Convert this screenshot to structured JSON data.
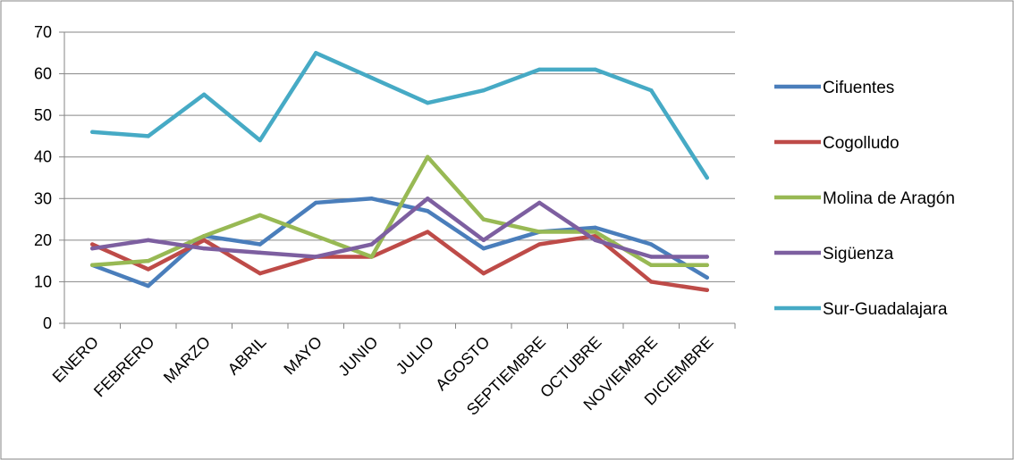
{
  "chart_data": {
    "type": "line",
    "title": "",
    "xlabel": "",
    "ylabel": "",
    "ylim": [
      0,
      70
    ],
    "yticks": [
      0,
      10,
      20,
      30,
      40,
      50,
      60,
      70
    ],
    "grid": true,
    "legend_position": "right",
    "categories": [
      "ENERO",
      "FEBRERO",
      "MARZO",
      "ABRIL",
      "MAYO",
      "JUNIO",
      "JULIO",
      "AGOSTO",
      "SEPTIEMBRE",
      "OCTUBRE",
      "NOVIEMBRE",
      "DICIEMBRE"
    ],
    "series": [
      {
        "name": "Cifuentes",
        "color": "#4a7ebb",
        "values": [
          14,
          9,
          21,
          19,
          29,
          30,
          27,
          18,
          22,
          23,
          19,
          11
        ]
      },
      {
        "name": "Cogolludo",
        "color": "#be4b48",
        "values": [
          19,
          13,
          20,
          12,
          16,
          16,
          22,
          12,
          19,
          21,
          10,
          8
        ]
      },
      {
        "name": "Molina de Aragón",
        "color": "#98b954",
        "values": [
          14,
          15,
          21,
          26,
          21,
          16,
          40,
          25,
          22,
          22,
          14,
          14
        ]
      },
      {
        "name": "Sigüenza",
        "color": "#7d5fa0",
        "values": [
          18,
          20,
          18,
          17,
          16,
          19,
          30,
          20,
          29,
          20,
          16,
          16
        ]
      },
      {
        "name": "Sur-Guadalajara",
        "color": "#46aac5",
        "values": [
          46,
          45,
          55,
          44,
          65,
          59,
          53,
          56,
          61,
          61,
          56,
          35
        ]
      }
    ]
  }
}
